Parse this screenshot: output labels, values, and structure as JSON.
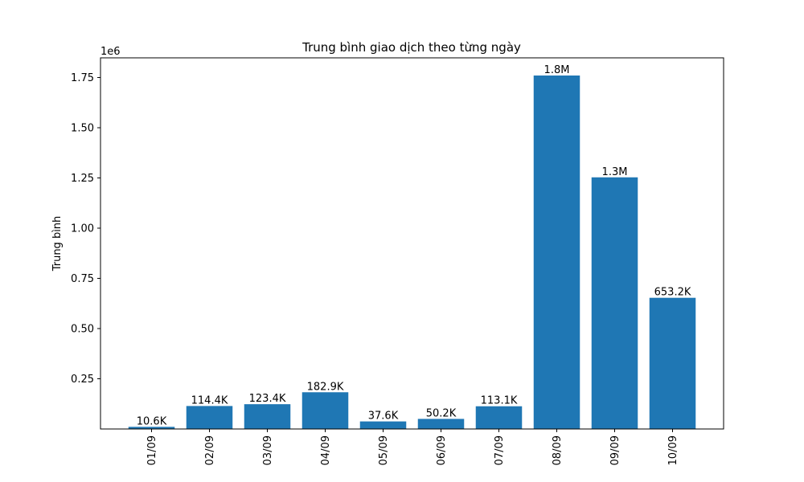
{
  "chart_data": {
    "type": "bar",
    "title": "Trung bình giao dịch theo từng ngày",
    "xlabel": "",
    "ylabel": "Trung bình",
    "offset_label": "1e6",
    "categories": [
      "01/09",
      "02/09",
      "03/09",
      "04/09",
      "05/09",
      "06/09",
      "07/09",
      "08/09",
      "09/09",
      "10/09"
    ],
    "values": [
      10600,
      114400,
      123400,
      182900,
      37600,
      50200,
      113100,
      1760000,
      1253000,
      653200
    ],
    "data_labels": [
      "10.6K",
      "114.4K",
      "123.4K",
      "182.9K",
      "37.6K",
      "50.2K",
      "113.1K",
      "1.8M",
      "1.3M",
      "653.2K"
    ],
    "ylim": [
      0,
      1848000
    ],
    "yticks": [
      0.25,
      0.5,
      0.75,
      1.0,
      1.25,
      1.5,
      1.75
    ],
    "ytick_labels": [
      "0.25",
      "0.50",
      "0.75",
      "1.00",
      "1.25",
      "1.50",
      "1.75"
    ],
    "bar_color": "#1f77b4",
    "grid": false
  }
}
